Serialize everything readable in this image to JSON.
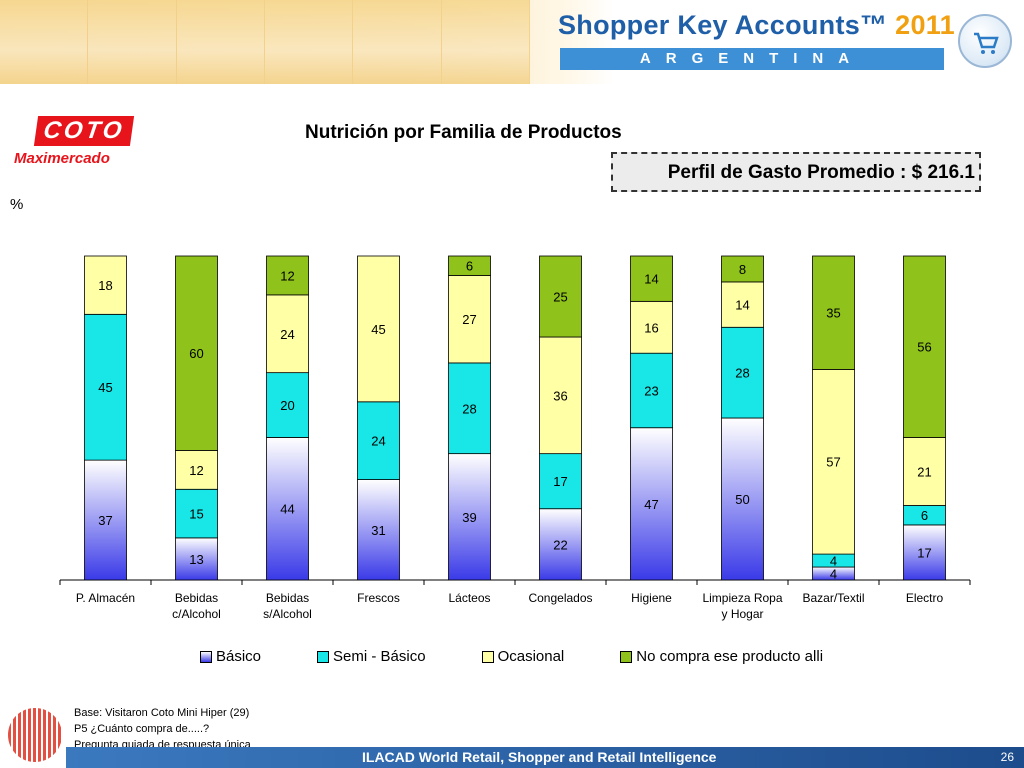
{
  "header": {
    "brand_main": "Shopper Key Accounts™",
    "brand_year": "2011",
    "country": "ARGENTINA"
  },
  "logo": {
    "name": "COTO",
    "sub": "Maximercado"
  },
  "percent_label": "%",
  "chart_data": {
    "type": "bar",
    "stacked": true,
    "title": "Nutrición por Familia de Productos",
    "subtitle": "Perfil de Gasto Promedio : $ 216.1",
    "ylabel": "%",
    "ylim": [
      0,
      100
    ],
    "grid": false,
    "legend_position": "bottom",
    "categories": [
      "P. Almacén",
      "Bebidas c/Alcohol",
      "Bebidas s/Alcohol",
      "Frescos",
      "Lácteos",
      "Congelados",
      "Higiene",
      "Limpieza Ropa y Hogar",
      "Bazar/Textil",
      "Electro"
    ],
    "category_lines": [
      [
        "P. Almacén"
      ],
      [
        "Bebidas",
        "c/Alcohol"
      ],
      [
        "Bebidas",
        "s/Alcohol"
      ],
      [
        "Frescos"
      ],
      [
        "Lácteos"
      ],
      [
        "Congelados"
      ],
      [
        "Higiene"
      ],
      [
        "Limpieza Ropa",
        "y Hogar"
      ],
      [
        "Bazar/Textil"
      ],
      [
        "Electro"
      ]
    ],
    "series": [
      {
        "name": "Básico",
        "color": "#3a3ae8",
        "values": [
          37,
          13,
          44,
          31,
          39,
          22,
          47,
          50,
          4,
          17
        ]
      },
      {
        "name": "Semi - Básico",
        "color": "#19e6e6",
        "values": [
          45,
          15,
          20,
          24,
          28,
          17,
          23,
          28,
          4,
          6
        ]
      },
      {
        "name": "Ocasional",
        "color": "#ffffa6",
        "values": [
          18,
          12,
          24,
          45,
          27,
          36,
          16,
          14,
          57,
          21
        ]
      },
      {
        "name": "No compra ese producto alli",
        "color": "#8fc21a",
        "values": [
          0,
          60,
          12,
          0,
          6,
          25,
          14,
          8,
          35,
          56
        ]
      }
    ]
  },
  "footnotes": {
    "line1": "Base: Visitaron Coto Mini Hiper  (29)",
    "line2": "P5 ¿Cuánto compra de.....?",
    "line3": "Pregunta guiada de respuesta única"
  },
  "footer": {
    "text": "ILACAD World Retail, Shopper and Retail Intelligence",
    "page": "26"
  }
}
